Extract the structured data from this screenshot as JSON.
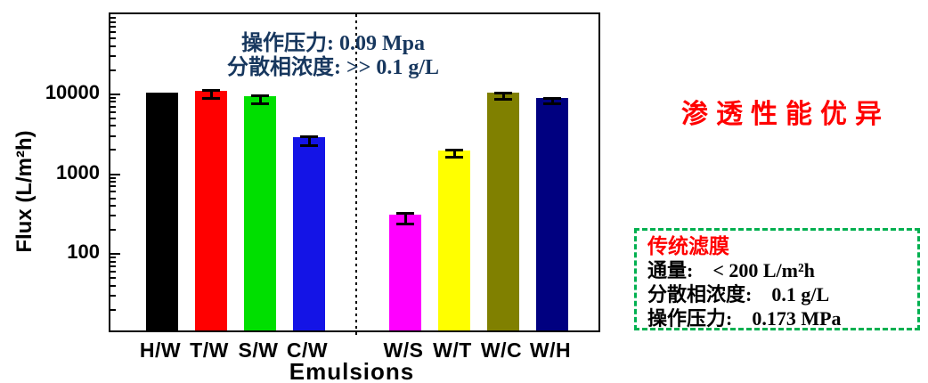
{
  "chart": {
    "y_axis": {
      "title": "Flux (L/m²h)",
      "tick_values": [
        10000,
        1000,
        100
      ],
      "tick_labels": [
        "10000",
        "1000",
        "100"
      ]
    },
    "x_axis": {
      "title": "Emulsions"
    },
    "annotation": {
      "line1": "操作压力: 0.09 Mpa",
      "line2": "分散相浓度: >> 0.1 g/L",
      "color": "#17375E"
    }
  },
  "chart_data": {
    "type": "bar",
    "title": "",
    "xlabel": "Emulsions",
    "ylabel": "Flux (L/m²h)",
    "yscale": "log",
    "ylim": [
      10,
      100000
    ],
    "grid": false,
    "legend": false,
    "categories": [
      "H/W",
      "T/W",
      "S/W",
      "C/W",
      "W/S",
      "W/T",
      "W/C",
      "W/H"
    ],
    "values": [
      9500,
      10000,
      8500,
      2600,
      280,
      1800,
      9500,
      8200
    ],
    "errors": [
      800,
      1200,
      1100,
      350,
      45,
      200,
      1000,
      800
    ],
    "bar_colors": [
      "#000000",
      "#FF0000",
      "#00DF00",
      "#1414E6",
      "#FF00FF",
      "#FFFF00",
      "#808000",
      "#000080"
    ],
    "group_split_index": 4,
    "separator": "vertical dotted line between C/W and W/S groups",
    "annotations": [
      "操作压力: 0.09 Mpa",
      "分散相浓度: >> 0.1 g/L"
    ]
  },
  "side": {
    "headline": {
      "text": "渗透性能优异",
      "color": "#FF0000"
    },
    "info_box": {
      "border_color": "#00B050",
      "title": {
        "text": "传统滤膜",
        "color": "#FF0000"
      },
      "rows": [
        {
          "label": "通量:",
          "value": "< 200 L/m²h"
        },
        {
          "label": "分散相浓度:",
          "value": "0.1 g/L"
        },
        {
          "label": "操作压力:",
          "value": "0.173 MPa"
        }
      ]
    }
  }
}
